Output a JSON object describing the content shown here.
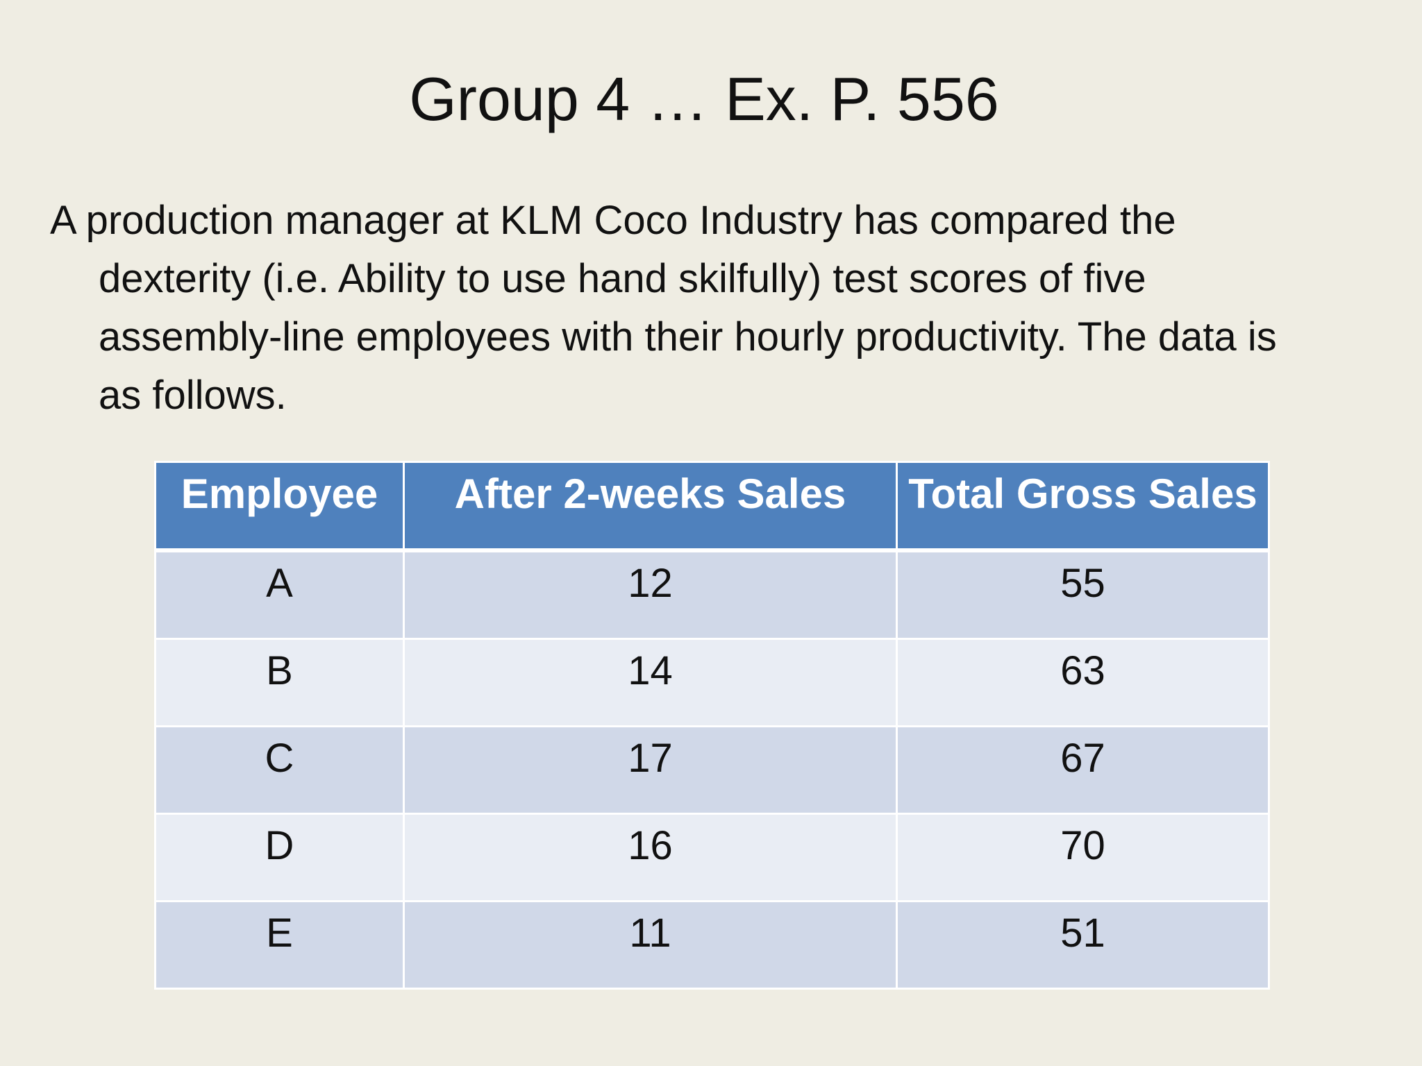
{
  "slide": {
    "title": "Group 4 …  Ex. P. 556",
    "body": "A production manager at KLM Coco Industry has compared the dexterity (i.e. Ability to use hand skilfully) test scores of five assembly-line employees with their hourly productivity.  The data is as follows."
  },
  "table": {
    "headers": [
      "Employee",
      "After 2-weeks Sales",
      "Total Gross Sales"
    ],
    "rows": [
      [
        "A",
        "12",
        "55"
      ],
      [
        "B",
        "14",
        "63"
      ],
      [
        "C",
        "17",
        "67"
      ],
      [
        "D",
        "16",
        "70"
      ],
      [
        "E",
        "11",
        "51"
      ]
    ]
  },
  "colors": {
    "background": "#efede3",
    "header": "#4f81bd",
    "row_band_dark": "#d0d8e8",
    "row_band_light": "#e9edf4"
  }
}
